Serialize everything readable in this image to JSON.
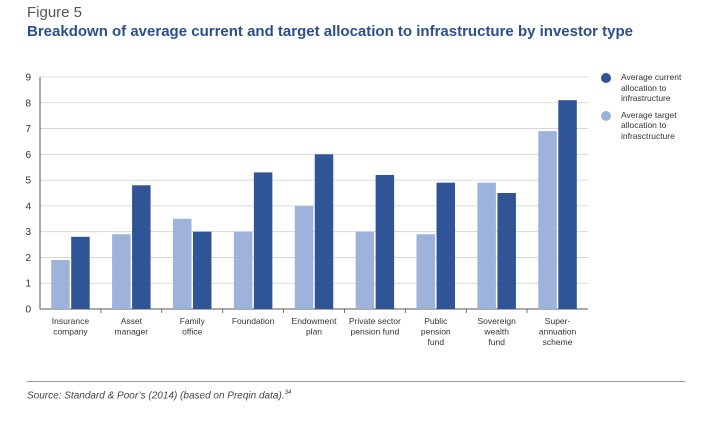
{
  "figure": {
    "label": "Figure 5",
    "title": "Breakdown of average current and target allocation to infrastructure by investor type"
  },
  "source": {
    "text": "Source: Standard & Poor’s (2014) (based on Preqin data).",
    "superscript": "34"
  },
  "colors": {
    "current": "#2f5597",
    "target": "#9db3dc",
    "grid": "#d0d0d0",
    "axis": "#555555"
  },
  "chart_data": {
    "type": "bar",
    "title": "Breakdown of average current and target allocation to infrastructure by investor type",
    "xlabel": "",
    "ylabel": "",
    "ylim": [
      0,
      9
    ],
    "yticks": [
      "0",
      "1",
      "2",
      "3",
      "4",
      "5",
      "6",
      "7",
      "8",
      "9"
    ],
    "grid": true,
    "legend_position": "right",
    "categories": [
      [
        "Insurance",
        "company"
      ],
      [
        "Asset",
        "manager"
      ],
      [
        "Family",
        "office"
      ],
      [
        "Foundation"
      ],
      [
        "Endowment",
        "plan"
      ],
      [
        "Private sector",
        "pension fund"
      ],
      [
        "Public",
        "pension",
        "fund"
      ],
      [
        "Sovereign",
        "wealth",
        "fund"
      ],
      [
        "Super-",
        "annuation",
        "scheme"
      ]
    ],
    "series": [
      {
        "name": "Average target allocation to infrasctructure",
        "key": "target",
        "values": [
          1.9,
          2.9,
          3.5,
          3.0,
          4.0,
          3.0,
          2.9,
          4.9,
          6.9
        ]
      },
      {
        "name": "Average current allocation to infrastructure",
        "key": "current",
        "values": [
          2.8,
          4.8,
          3.0,
          5.3,
          6.0,
          5.2,
          4.9,
          4.5,
          8.1
        ]
      }
    ]
  },
  "legend": [
    {
      "label": "Average current allocation to infrastructure",
      "key": "current"
    },
    {
      "label": "Average target allocation to infrasctructure",
      "key": "target"
    }
  ]
}
